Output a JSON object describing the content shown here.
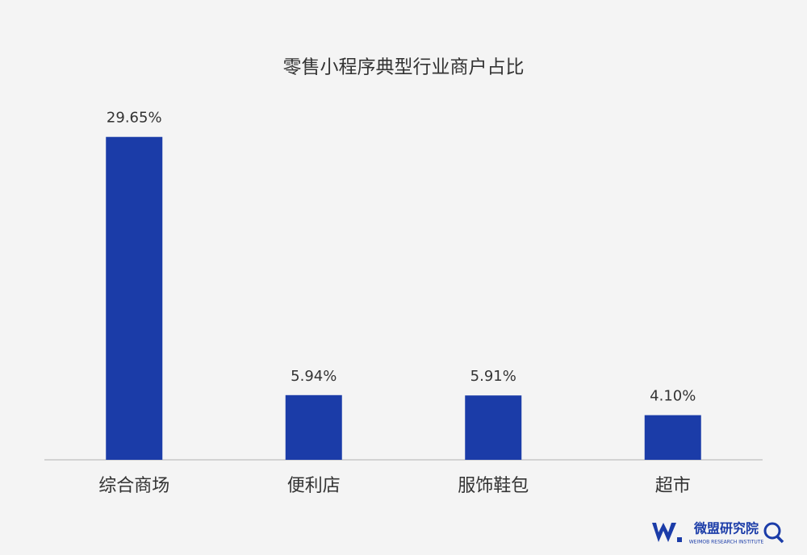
{
  "chart_data": {
    "type": "bar",
    "title": "零售小程序典型行业商户占比",
    "categories": [
      "综合商场",
      "便利店",
      "服饰鞋包",
      "超市"
    ],
    "values": [
      29.65,
      5.94,
      5.91,
      4.1
    ],
    "value_labels": [
      "29.65%",
      "5.94%",
      "5.91%",
      "4.10%"
    ],
    "color": "#1b3ca8",
    "ylim": [
      0,
      30
    ]
  },
  "logo": {
    "name": "微盟研究院",
    "subtitle": "WEIMOB RESEARCH INSTITUTE"
  }
}
